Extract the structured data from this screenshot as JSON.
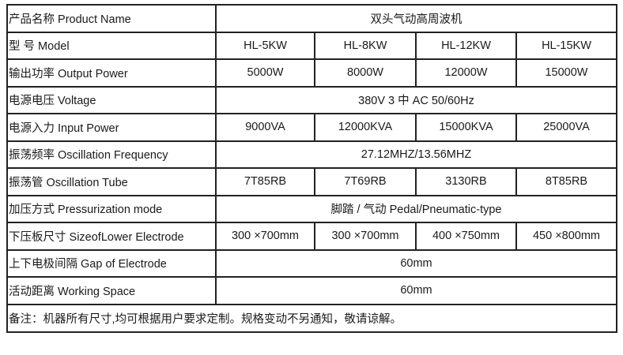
{
  "table": {
    "rows": [
      {
        "label": "产品名称 Product Name",
        "values": [
          "双头气动高周波机"
        ]
      },
      {
        "label": "型 号 Model",
        "values": [
          "HL-5KW",
          "HL-8KW",
          "HL-12KW",
          "HL-15KW"
        ]
      },
      {
        "label": "输出功率 Output Power",
        "values": [
          "5000W",
          "8000W",
          "12000W",
          "15000W"
        ]
      },
      {
        "label": "电源电压 Voltage",
        "values": [
          "380V 3 中 AC 50/60Hz"
        ]
      },
      {
        "label": "电源入力   Input Power",
        "values": [
          "9000VA",
          "12000KVA",
          "15000KVA",
          "25000VA"
        ]
      },
      {
        "label": "振荡频率 Oscillation Frequency",
        "values": [
          "27.12MHZ/13.56MHZ"
        ]
      },
      {
        "label": "振荡管 Oscillation Tube",
        "values": [
          "7T85RB",
          "7T69RB",
          "3130RB",
          "8T85RB"
        ]
      },
      {
        "label": "加压方式  Pressurization mode",
        "values": [
          "脚踏 / 气动 Pedal/Pneumatic-type"
        ]
      },
      {
        "label": "下压板尺寸 SizeofLower Electrode",
        "values": [
          "300 ×700mm",
          "300 ×700mm",
          "400 ×750mm",
          "450 ×800mm"
        ]
      },
      {
        "label": "上下电极间隔 Gap of Electrode",
        "values": [
          "60mm"
        ]
      },
      {
        "label": "活动距离 Working Space",
        "values": [
          "60mm"
        ]
      }
    ],
    "note": "备注：机器所有尺寸,均可根据用户要求定制。规格变动不另通知，敬请谅解。"
  }
}
